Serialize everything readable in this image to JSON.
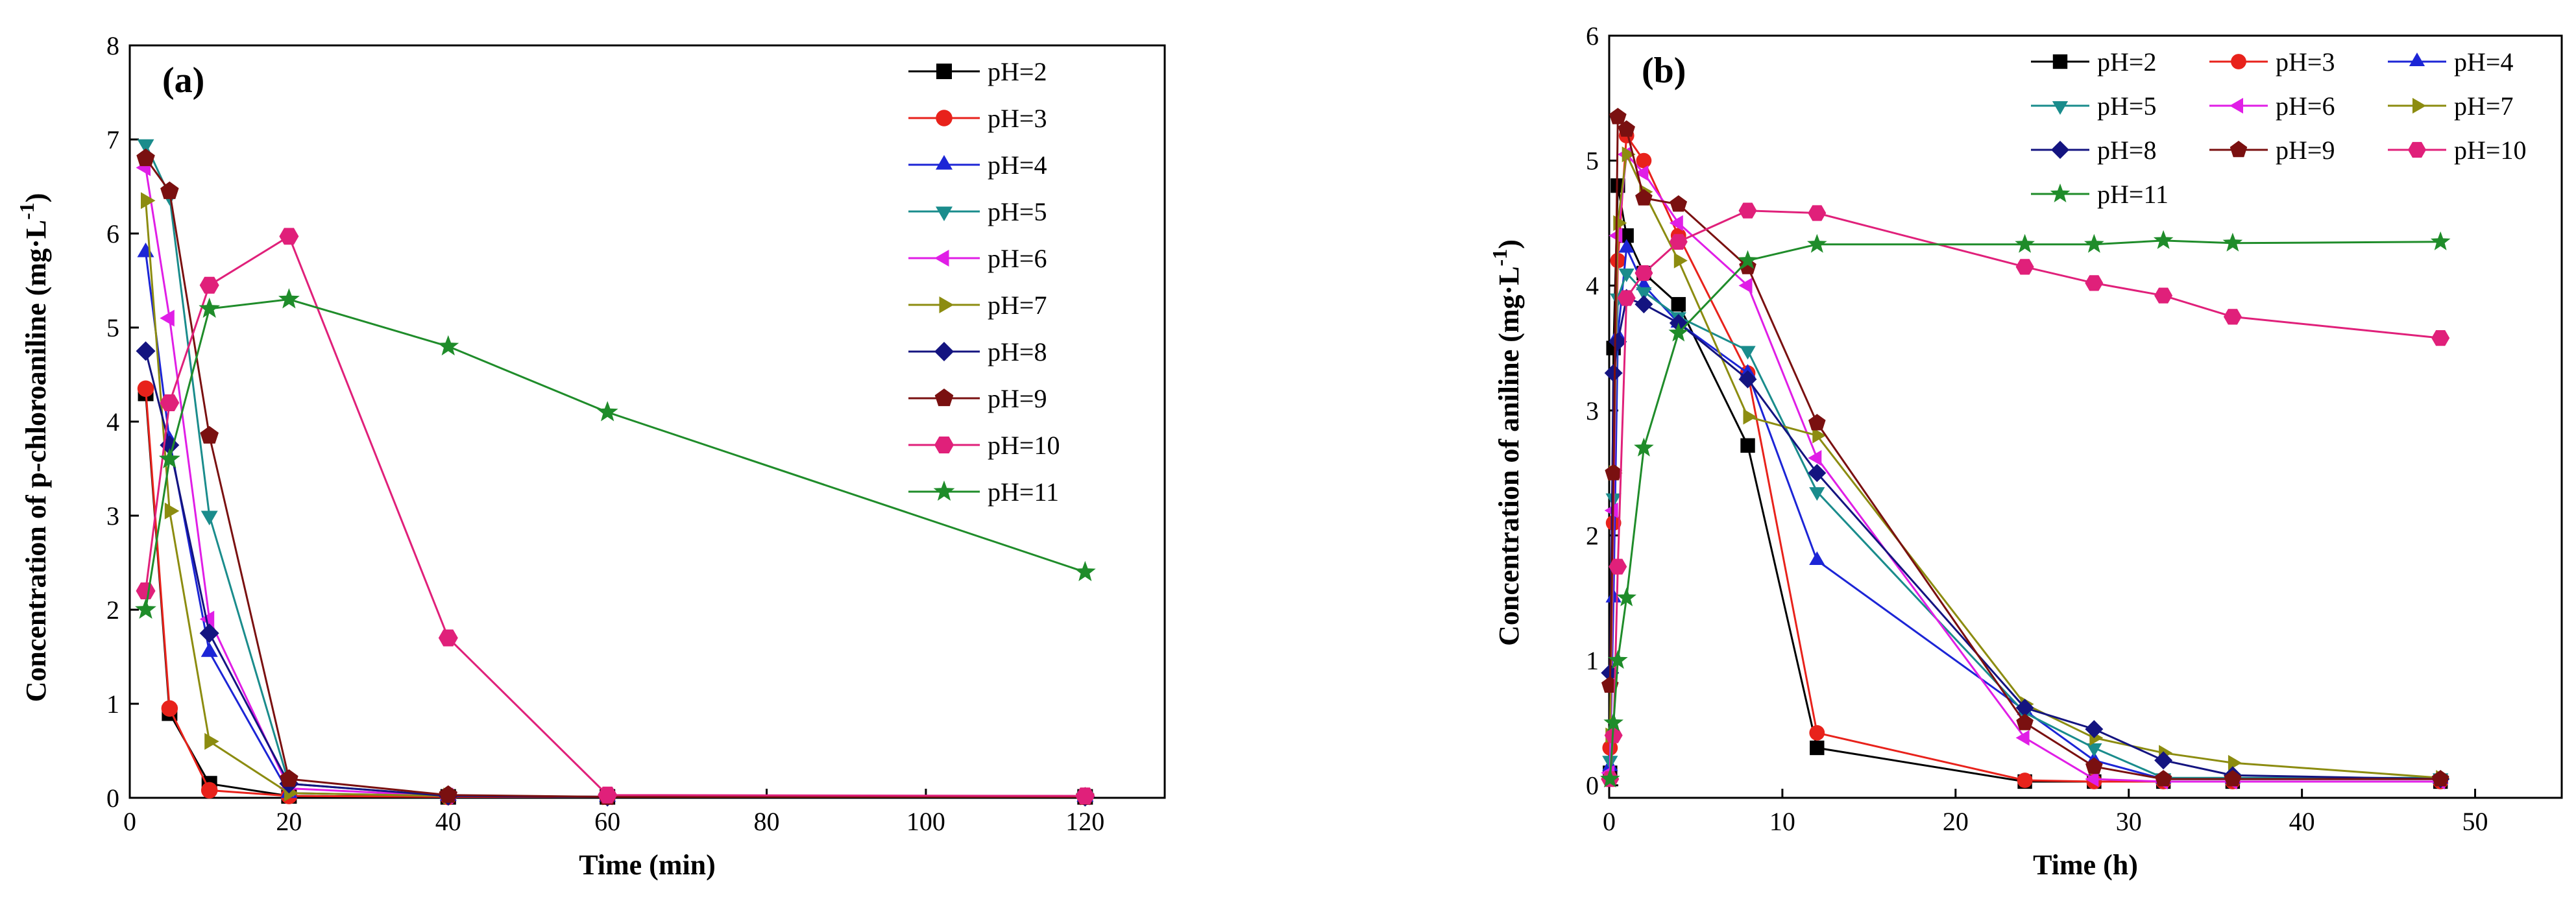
{
  "figure": {
    "panel_count": 2
  },
  "chart_data": [
    {
      "type": "line",
      "panel_label": "(a)",
      "xlabel": "Time (min)",
      "ylabel": "Concentration of p-chloroaniline (mg·L",
      "ylabel_superscript": "-1",
      "ylabel_suffix": ")",
      "xlim": [
        0,
        130
      ],
      "ylim": [
        0,
        8
      ],
      "xticks": [
        0,
        20,
        40,
        60,
        80,
        100,
        120
      ],
      "yticks": [
        0,
        1,
        2,
        3,
        4,
        5,
        6,
        7,
        8
      ],
      "legend_position": "top-right, single column",
      "series": [
        {
          "name": "pH=2",
          "color": "#000000",
          "marker": "square",
          "x": [
            2,
            5,
            10,
            20,
            40,
            60,
            120
          ],
          "y": [
            4.3,
            0.9,
            0.15,
            0.02,
            0.01,
            0.01,
            0.01
          ]
        },
        {
          "name": "pH=3",
          "color": "#e8221b",
          "marker": "circle",
          "x": [
            2,
            5,
            10,
            20,
            40,
            60,
            120
          ],
          "y": [
            4.35,
            0.95,
            0.08,
            0.02,
            0.01,
            0.01,
            0.01
          ]
        },
        {
          "name": "pH=4",
          "color": "#1c25d6",
          "marker": "triangle-up",
          "x": [
            2,
            5,
            10,
            20,
            40,
            60,
            120
          ],
          "y": [
            5.8,
            3.8,
            1.55,
            0.05,
            0.02,
            0.01,
            0.01
          ]
        },
        {
          "name": "pH=5",
          "color": "#1a8c8c",
          "marker": "triangle-down",
          "x": [
            2,
            5,
            10,
            20,
            40,
            60,
            120
          ],
          "y": [
            6.95,
            6.4,
            3.0,
            0.15,
            0.02,
            0.01,
            0.01
          ]
        },
        {
          "name": "pH=6",
          "color": "#e01ee6",
          "marker": "triangle-left",
          "x": [
            2,
            5,
            10,
            20,
            40,
            60,
            120
          ],
          "y": [
            6.7,
            5.1,
            1.9,
            0.1,
            0.02,
            0.01,
            0.01
          ]
        },
        {
          "name": "pH=7",
          "color": "#8c8c10",
          "marker": "triangle-right",
          "x": [
            2,
            5,
            10,
            20,
            40,
            60,
            120
          ],
          "y": [
            6.35,
            3.05,
            0.6,
            0.05,
            0.02,
            0.01,
            0.01
          ]
        },
        {
          "name": "pH=8",
          "color": "#141480",
          "marker": "diamond",
          "x": [
            2,
            5,
            10,
            20,
            40,
            60,
            120
          ],
          "y": [
            4.75,
            3.75,
            1.75,
            0.15,
            0.02,
            0.01,
            0.01
          ]
        },
        {
          "name": "pH=9",
          "color": "#7a1010",
          "marker": "pentagon",
          "x": [
            2,
            5,
            10,
            20,
            40,
            60,
            120
          ],
          "y": [
            6.8,
            6.45,
            3.85,
            0.2,
            0.03,
            0.01,
            0.01
          ]
        },
        {
          "name": "pH=10",
          "color": "#e0207a",
          "marker": "hexagon",
          "x": [
            2,
            5,
            10,
            20,
            40,
            60,
            120
          ],
          "y": [
            2.2,
            4.2,
            5.45,
            5.97,
            1.7,
            0.03,
            0.02
          ]
        },
        {
          "name": "pH=11",
          "color": "#1f8c2a",
          "marker": "star",
          "x": [
            2,
            5,
            10,
            20,
            40,
            60,
            120
          ],
          "y": [
            2.0,
            3.6,
            5.2,
            5.3,
            4.8,
            4.1,
            2.4
          ]
        }
      ]
    },
    {
      "type": "line",
      "panel_label": "(b)",
      "xlabel": "Time (h)",
      "ylabel": "Concentration of aniline (mg·L",
      "ylabel_superscript": "-1",
      "ylabel_suffix": ")",
      "xlim": [
        0,
        55
      ],
      "ylim": [
        -0.1,
        6
      ],
      "xticks": [
        0,
        10,
        20,
        30,
        40,
        50
      ],
      "yticks": [
        0,
        1,
        2,
        3,
        4,
        5,
        6
      ],
      "legend_position": "top-right, three columns",
      "series": [
        {
          "name": "pH=2",
          "color": "#000000",
          "marker": "square",
          "x": [
            0.05,
            0.25,
            0.5,
            1,
            2,
            4,
            8,
            12,
            24,
            28,
            32,
            36,
            48
          ],
          "y": [
            0.1,
            3.5,
            4.8,
            4.4,
            4.1,
            3.85,
            2.72,
            0.3,
            0.03,
            0.03,
            0.03,
            0.03,
            0.03
          ]
        },
        {
          "name": "pH=3",
          "color": "#e8221b",
          "marker": "circle",
          "x": [
            0.05,
            0.25,
            0.5,
            1,
            2,
            4,
            8,
            12,
            24,
            28,
            32,
            36,
            48
          ],
          "y": [
            0.3,
            2.1,
            4.2,
            5.2,
            5.0,
            4.4,
            3.3,
            0.42,
            0.04,
            0.03,
            0.03,
            0.03,
            0.03
          ]
        },
        {
          "name": "pH=4",
          "color": "#1c25d6",
          "marker": "triangle-up",
          "x": [
            0.05,
            0.25,
            0.5,
            1,
            2,
            4,
            8,
            12,
            24,
            28,
            32,
            36,
            48
          ],
          "y": [
            0.15,
            1.5,
            3.6,
            4.3,
            4.0,
            3.7,
            3.3,
            1.8,
            0.6,
            0.2,
            0.05,
            0.05,
            0.05
          ]
        },
        {
          "name": "pH=5",
          "color": "#1a8c8c",
          "marker": "triangle-down",
          "x": [
            0.05,
            0.25,
            0.5,
            1,
            2,
            4,
            8,
            12,
            24,
            28,
            32,
            36,
            48
          ],
          "y": [
            0.2,
            2.3,
            3.9,
            4.1,
            3.95,
            3.75,
            3.48,
            2.35,
            0.58,
            0.3,
            0.06,
            0.06,
            0.06
          ]
        },
        {
          "name": "pH=6",
          "color": "#e01ee6",
          "marker": "triangle-left",
          "x": [
            0.05,
            0.25,
            0.5,
            1,
            2,
            4,
            8,
            12,
            24,
            28,
            32,
            36,
            48
          ],
          "y": [
            0.1,
            2.2,
            4.4,
            5.05,
            4.9,
            4.5,
            4.0,
            2.62,
            0.38,
            0.05,
            0.03,
            0.03,
            0.03
          ]
        },
        {
          "name": "pH=7",
          "color": "#8c8c10",
          "marker": "triangle-right",
          "x": [
            0.05,
            0.25,
            0.5,
            1,
            2,
            4,
            8,
            12,
            24,
            28,
            32,
            36,
            48
          ],
          "y": [
            0.4,
            2.5,
            4.5,
            5.05,
            4.75,
            4.2,
            2.95,
            2.8,
            0.65,
            0.38,
            0.26,
            0.18,
            0.06
          ]
        },
        {
          "name": "pH=8",
          "color": "#141480",
          "marker": "diamond",
          "x": [
            0.05,
            0.25,
            0.5,
            1,
            2,
            4,
            8,
            12,
            24,
            28,
            32,
            36,
            48
          ],
          "y": [
            0.9,
            3.3,
            3.55,
            3.9,
            3.85,
            3.7,
            3.25,
            2.5,
            0.62,
            0.45,
            0.2,
            0.08,
            0.05
          ]
        },
        {
          "name": "pH=9",
          "color": "#7a1010",
          "marker": "pentagon",
          "x": [
            0.05,
            0.25,
            0.5,
            1,
            2,
            4,
            8,
            12,
            24,
            28,
            32,
            36,
            48
          ],
          "y": [
            0.8,
            2.5,
            5.35,
            5.25,
            4.7,
            4.65,
            4.15,
            2.9,
            0.5,
            0.15,
            0.05,
            0.05,
            0.05
          ]
        },
        {
          "name": "pH=10",
          "color": "#e0207a",
          "marker": "hexagon",
          "x": [
            0.05,
            0.25,
            0.5,
            1,
            2,
            4,
            8,
            12,
            24,
            28,
            32,
            36,
            48
          ],
          "y": [
            0.05,
            0.4,
            1.75,
            3.9,
            4.1,
            4.35,
            4.6,
            4.58,
            4.15,
            4.02,
            3.92,
            3.75,
            3.58
          ]
        },
        {
          "name": "pH=11",
          "color": "#1f8c2a",
          "marker": "star",
          "x": [
            0.05,
            0.25,
            0.5,
            1,
            2,
            4,
            8,
            12,
            24,
            28,
            32,
            36,
            48
          ],
          "y": [
            0.05,
            0.5,
            1.0,
            1.5,
            2.7,
            3.62,
            4.2,
            4.33,
            4.33,
            4.33,
            4.36,
            4.34,
            4.35
          ]
        }
      ]
    }
  ]
}
